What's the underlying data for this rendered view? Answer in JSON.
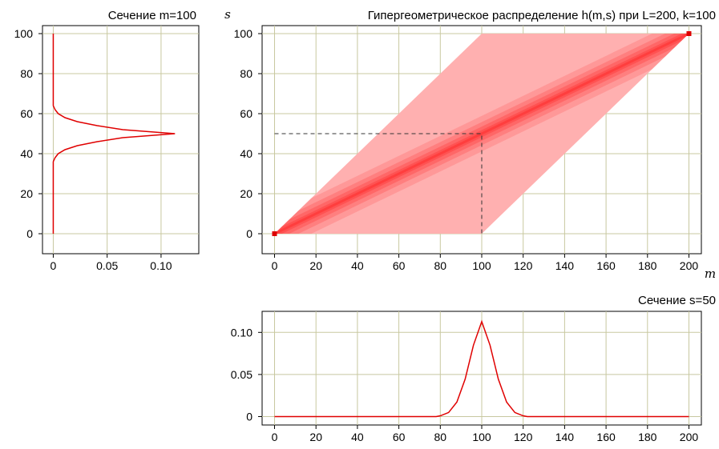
{
  "chart_data": [
    {
      "id": "left",
      "type": "line",
      "title": "Сечение m=100",
      "orientation": "vertical",
      "xlim": [
        -0.01,
        0.135
      ],
      "ylim": [
        -10,
        104
      ],
      "x_ticks": [
        0,
        0.05,
        0.1
      ],
      "x_tick_labels": [
        "0",
        "0.05",
        "0.10"
      ],
      "y_ticks": [
        0,
        20,
        40,
        60,
        80,
        100
      ],
      "y_tick_labels": [
        "0",
        "20",
        "40",
        "60",
        "80",
        "100"
      ],
      "grid": true,
      "color": "#e00000",
      "series": [
        {
          "s": [
            0,
            36,
            38,
            40,
            42,
            44,
            46,
            48,
            50,
            52,
            54,
            56,
            58,
            60,
            62,
            64,
            100
          ],
          "h": [
            0,
            0,
            0.0017,
            0.0046,
            0.0109,
            0.0223,
            0.0408,
            0.0645,
            0.1129,
            0.0645,
            0.0408,
            0.0223,
            0.0109,
            0.0046,
            0.0017,
            0,
            0
          ]
        }
      ]
    },
    {
      "id": "main",
      "type": "heatmap",
      "title": "Гипергеометрическое распределение h(m,s) при L=200, k=100",
      "xlabel": "m",
      "ylabel": "s",
      "xlim": [
        -6,
        206
      ],
      "ylim": [
        -10,
        104
      ],
      "x_ticks": [
        0,
        20,
        40,
        60,
        80,
        100,
        120,
        140,
        160,
        180,
        200
      ],
      "x_tick_labels": [
        "0",
        "20",
        "40",
        "60",
        "80",
        "100",
        "120",
        "140",
        "160",
        "180",
        "200"
      ],
      "y_ticks": [
        0,
        20,
        40,
        60,
        80,
        100
      ],
      "y_tick_labels": [
        "0",
        "20",
        "40",
        "60",
        "80",
        "100"
      ],
      "grid": true,
      "support_region": [
        [
          0,
          0
        ],
        [
          100,
          0
        ],
        [
          200,
          100
        ],
        [
          100,
          100
        ]
      ],
      "fill_color": "#ffb0b0",
      "ridge_color": "#ff2a2a",
      "marker_point": [
        100,
        50
      ]
    },
    {
      "id": "bottom",
      "type": "line",
      "title": "Сечение s=50",
      "xlim": [
        -6,
        206
      ],
      "ylim": [
        -0.01,
        0.125
      ],
      "x_ticks": [
        0,
        20,
        40,
        60,
        80,
        100,
        120,
        140,
        160,
        180,
        200
      ],
      "x_tick_labels": [
        "0",
        "20",
        "40",
        "60",
        "80",
        "100",
        "120",
        "140",
        "160",
        "180",
        "200"
      ],
      "y_ticks": [
        0,
        0.05,
        0.1
      ],
      "y_tick_labels": [
        "0",
        "0.05",
        "0.10"
      ],
      "grid": true,
      "color": "#e00000",
      "series": [
        {
          "m": [
            0,
            78,
            80,
            84,
            88,
            92,
            96,
            100,
            104,
            108,
            112,
            116,
            120,
            122,
            200
          ],
          "h": [
            0,
            0,
            0.0009,
            0.0048,
            0.0172,
            0.0445,
            0.0848,
            0.1129,
            0.0848,
            0.0445,
            0.0172,
            0.0048,
            0.0009,
            0,
            0
          ]
        }
      ]
    }
  ]
}
